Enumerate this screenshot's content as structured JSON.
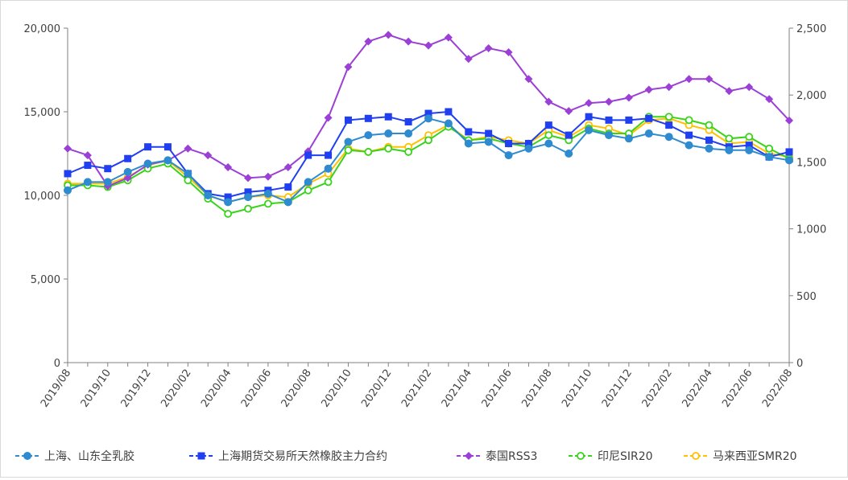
{
  "chart_data": {
    "type": "line",
    "x": [
      "2019/08",
      "2019/09",
      "2019/10",
      "2019/11",
      "2019/12",
      "2020/01",
      "2020/02",
      "2020/03",
      "2020/04",
      "2020/05",
      "2020/06",
      "2020/07",
      "2020/08",
      "2020/09",
      "2020/10",
      "2020/11",
      "2020/12",
      "2021/01",
      "2021/02",
      "2021/03",
      "2021/04",
      "2021/05",
      "2021/06",
      "2021/07",
      "2021/08",
      "2021/09",
      "2021/10",
      "2021/11",
      "2021/12",
      "2022/01",
      "2022/02",
      "2022/03",
      "2022/04",
      "2022/05",
      "2022/06",
      "2022/07",
      "2022/08"
    ],
    "xtick_labels": [
      "2019/08",
      "2019/10",
      "2019/12",
      "2020/02",
      "2020/04",
      "2020/06",
      "2020/08",
      "2020/10",
      "2020/12",
      "2021/02",
      "2021/04",
      "2021/06",
      "2021/08",
      "2021/10",
      "2021/12",
      "2022/02",
      "2022/04",
      "2022/06",
      "2022/08"
    ],
    "y_left": {
      "ylim": [
        0,
        20000
      ],
      "ticks": [
        "0",
        "5,000",
        "10,000",
        "15,000",
        "20,000"
      ]
    },
    "y_right": {
      "ylim": [
        0,
        2500
      ],
      "ticks": [
        "0",
        "500",
        "1,000",
        "1,500",
        "2,000",
        "2,500"
      ]
    },
    "grid": false,
    "legend_position": "bottom",
    "series": [
      {
        "name": "上海、山东全乳胶",
        "axis": "left",
        "color": "#2e8bd0",
        "marker": "circle-filled",
        "values": [
          10300,
          10800,
          10800,
          11400,
          11900,
          12100,
          11300,
          10000,
          9600,
          9900,
          10100,
          9600,
          10800,
          11600,
          13200,
          13600,
          13700,
          13700,
          14600,
          14300,
          13100,
          13200,
          12400,
          12800,
          13100,
          12500,
          13900,
          13600,
          13400,
          13700,
          13500,
          13000,
          12800,
          12700,
          12700,
          12300,
          12100
        ]
      },
      {
        "name": "上海期货交易所天然橡胶主力合约",
        "axis": "left",
        "color": "#1f3ff0",
        "marker": "square-filled",
        "values": [
          11300,
          11800,
          11600,
          12200,
          12900,
          12900,
          11300,
          10100,
          9900,
          10200,
          10300,
          10500,
          12400,
          12400,
          14500,
          14600,
          14700,
          14400,
          14900,
          15000,
          13800,
          13700,
          13100,
          13100,
          14200,
          13600,
          14700,
          14500,
          14500,
          14600,
          14200,
          13600,
          13300,
          12900,
          13000,
          12300,
          12600
        ]
      },
      {
        "name": "泰国RSS3",
        "axis": "right",
        "color": "#9b3fd6",
        "marker": "diamond-filled",
        "values": [
          1600,
          1550,
          1320,
          1380,
          1480,
          1510,
          1600,
          1550,
          1460,
          1380,
          1390,
          1460,
          1580,
          1830,
          2210,
          2400,
          2450,
          2400,
          2370,
          2430,
          2270,
          2350,
          2320,
          2120,
          1950,
          1880,
          1940,
          1950,
          1980,
          2040,
          2060,
          2120,
          2120,
          2030,
          2060,
          1970,
          1810
        ]
      },
      {
        "name": "印尼SIR20",
        "axis": "left",
        "color": "#3ad31c",
        "marker": "circle-open",
        "values": [
          10600,
          10600,
          10500,
          10900,
          11600,
          11900,
          10900,
          9800,
          8900,
          9200,
          9500,
          9600,
          10300,
          10800,
          12700,
          12600,
          12800,
          12600,
          13300,
          14100,
          13300,
          13400,
          13100,
          12900,
          13600,
          13300,
          14000,
          13700,
          13700,
          14700,
          14700,
          14500,
          14200,
          13400,
          13500,
          12800,
          12200
        ]
      },
      {
        "name": "马来西亚SMR20",
        "axis": "left",
        "color": "#ffc000",
        "marker": "circle-open",
        "values": [
          10700,
          10700,
          10700,
          11100,
          11800,
          12100,
          11100,
          10000,
          9600,
          9900,
          10000,
          9900,
          10700,
          11300,
          12800,
          12600,
          12900,
          12900,
          13600,
          14200,
          13300,
          13500,
          13300,
          13100,
          13900,
          13500,
          14200,
          14000,
          13600,
          14500,
          14600,
          14200,
          13900,
          13100,
          13200,
          12500,
          12300
        ]
      }
    ]
  }
}
